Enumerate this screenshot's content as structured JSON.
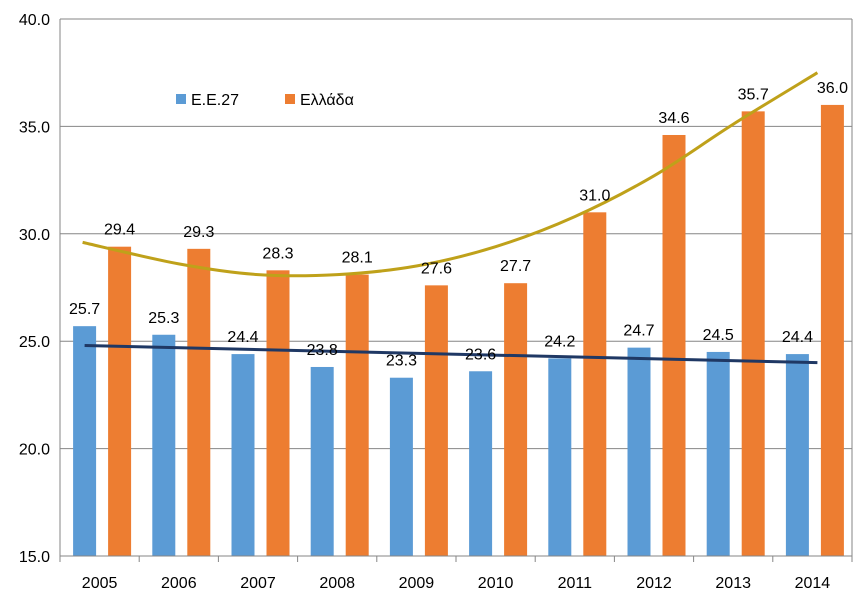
{
  "chart_data": {
    "type": "bar",
    "categories": [
      "2005",
      "2006",
      "2007",
      "2008",
      "2009",
      "2010",
      "2011",
      "2012",
      "2013",
      "2014"
    ],
    "series": [
      {
        "name": "Ε.Ε.27",
        "color": "#5B9BD5",
        "values": [
          25.7,
          25.3,
          24.4,
          23.8,
          23.3,
          23.6,
          24.2,
          24.7,
          24.5,
          24.4
        ]
      },
      {
        "name": "Ελλάδα",
        "color": "#ED7D31",
        "values": [
          29.4,
          29.3,
          28.3,
          28.1,
          27.6,
          27.7,
          31.0,
          34.6,
          35.7,
          36.0
        ]
      }
    ],
    "ylim": [
      15.0,
      40.0
    ],
    "yticks": [
      "15.0",
      "20.0",
      "25.0",
      "30.0",
      "35.0",
      "40.0"
    ],
    "grid": true,
    "legend_position": "top-left",
    "trendlines": [
      {
        "series": "Ε.Ε.27",
        "kind": "linear",
        "color": "#1F3864",
        "start": 24.8,
        "end": 24.0
      },
      {
        "series": "Ελλάδα",
        "kind": "polynomial",
        "color": "#BFA11A",
        "values": [
          29.6,
          28.6,
          28.1,
          28.1,
          28.5,
          29.4,
          30.8,
          32.7,
          35.1,
          37.5
        ]
      }
    ],
    "title": "",
    "xlabel": "",
    "ylabel": ""
  }
}
